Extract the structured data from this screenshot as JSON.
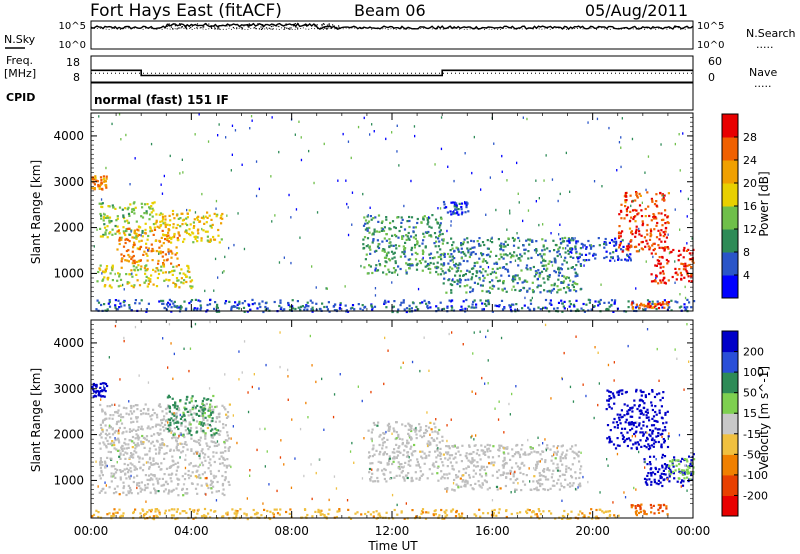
{
  "header": {
    "station": "Fort Hays East (fitACF)",
    "beam": "Beam 06",
    "date": "05/Aug/2011"
  },
  "panels": {
    "nsky_label": "N.Sky",
    "nsearch_label": "N.Search",
    "freq_label_1": "Freq.",
    "freq_label_2": "[MHz]",
    "nave_label": "Nave",
    "cpid_label": "CPID",
    "cpid_text": "normal (fast) 151 IF",
    "noise_ticks_left": [
      "10^5",
      "10^0"
    ],
    "noise_ticks_right": [
      "10^5",
      "10^0"
    ],
    "freq_ticks": [
      "18",
      "8"
    ],
    "nave_ticks": [
      "60",
      "0"
    ],
    "legend_dotted": "....."
  },
  "colors": {
    "power_scale": [
      "#0000ff",
      "#2a55c8",
      "#2e8b57",
      "#6fbf4a",
      "#e8d000",
      "#f0a000",
      "#f06000",
      "#e80000"
    ],
    "velocity_scale": [
      "#0000c8",
      "#2a4fd8",
      "#2e8b57",
      "#7ed050",
      "#c8c8c8",
      "#f0c040",
      "#f08000",
      "#e84000",
      "#e80000"
    ],
    "ground_scatter": "#bebebe"
  },
  "chart_data": [
    {
      "type": "heatmap",
      "title": "",
      "quantity": "Power",
      "ylabel": "Slant Range [km]",
      "xlabel": "",
      "x_ticks": [
        "00:00",
        "04:00",
        "08:00",
        "12:00",
        "16:00",
        "20:00",
        "00:00"
      ],
      "y_ticks": [
        "1000",
        "2000",
        "3000",
        "4000"
      ],
      "xlim_hours": [
        0,
        24
      ],
      "ylim_km": [
        180,
        4500
      ],
      "colorbar": {
        "label": "Power [dB]",
        "ticks": [
          "4",
          "8",
          "12",
          "16",
          "20",
          "24",
          "28"
        ],
        "range": [
          0,
          30
        ]
      },
      "echo_regions": [
        {
          "t_start": 0.0,
          "t_end": 0.6,
          "range_low": 2850,
          "range_high": 3150,
          "value": 22
        },
        {
          "t_start": 0.3,
          "t_end": 2.5,
          "range_low": 1800,
          "range_high": 2600,
          "value": 14
        },
        {
          "t_start": 1.0,
          "t_end": 3.5,
          "range_low": 1200,
          "range_high": 2000,
          "value": 22
        },
        {
          "t_start": 2.5,
          "t_end": 5.2,
          "range_low": 1700,
          "range_high": 2400,
          "value": 18
        },
        {
          "t_start": 0.2,
          "t_end": 4.0,
          "range_low": 700,
          "range_high": 1200,
          "value": 16
        },
        {
          "t_start": 10.8,
          "t_end": 14.0,
          "range_low": 1000,
          "range_high": 2300,
          "value": 10
        },
        {
          "t_start": 14.0,
          "t_end": 19.5,
          "range_low": 600,
          "range_high": 1800,
          "value": 9
        },
        {
          "t_start": 14.0,
          "t_end": 15.0,
          "range_low": 2300,
          "range_high": 2600,
          "value": 4
        },
        {
          "t_start": 19.0,
          "t_end": 21.5,
          "range_low": 1300,
          "range_high": 1800,
          "value": 5
        },
        {
          "t_start": 21.0,
          "t_end": 23.0,
          "range_low": 1500,
          "range_high": 2800,
          "value": 26
        },
        {
          "t_start": 22.3,
          "t_end": 24.0,
          "range_low": 800,
          "range_high": 1600,
          "value": 28
        },
        {
          "t_start": 0.0,
          "t_end": 24.0,
          "range_low": 180,
          "range_high": 450,
          "value": 6
        },
        {
          "t_start": 21.5,
          "t_end": 23.0,
          "range_low": 250,
          "range_high": 400,
          "value": 24
        }
      ]
    },
    {
      "type": "heatmap",
      "title": "",
      "quantity": "Velocity",
      "ylabel": "Slant Range [km]",
      "xlabel": "Time UT",
      "x_ticks": [
        "00:00",
        "04:00",
        "08:00",
        "12:00",
        "16:00",
        "20:00",
        "00:00"
      ],
      "y_ticks": [
        "1000",
        "2000",
        "3000",
        "4000"
      ],
      "xlim_hours": [
        0,
        24
      ],
      "ylim_km": [
        180,
        4500
      ],
      "colorbar": {
        "label": "Velocity [m s^-1]",
        "ticks": [
          "200",
          "100",
          "50",
          "15",
          "-15",
          "-50",
          "-100",
          "-200"
        ],
        "range": [
          -250,
          250
        ]
      },
      "echo_regions": [
        {
          "t_start": 0.0,
          "t_end": 0.6,
          "range_low": 2850,
          "range_high": 3150,
          "value": 220
        },
        {
          "t_start": 0.3,
          "t_end": 5.5,
          "range_low": 700,
          "range_high": 2700,
          "value": 0,
          "ground_scatter": true
        },
        {
          "t_start": 3.0,
          "t_end": 5.0,
          "range_low": 2000,
          "range_high": 2900,
          "value": 60
        },
        {
          "t_start": 11.0,
          "t_end": 14.0,
          "range_low": 1000,
          "range_high": 2300,
          "value": 0,
          "ground_scatter": true
        },
        {
          "t_start": 14.0,
          "t_end": 19.5,
          "range_low": 800,
          "range_high": 1800,
          "value": 0,
          "ground_scatter": true
        },
        {
          "t_start": 20.5,
          "t_end": 23.0,
          "range_low": 1700,
          "range_high": 3000,
          "value": 230
        },
        {
          "t_start": 22.0,
          "t_end": 24.0,
          "range_low": 900,
          "range_high": 1600,
          "value": 220
        },
        {
          "t_start": 23.0,
          "t_end": 24.0,
          "range_low": 1000,
          "range_high": 1500,
          "value": 30
        },
        {
          "t_start": 0.0,
          "t_end": 21.0,
          "range_low": 180,
          "range_high": 400,
          "value": -40
        },
        {
          "t_start": 21.5,
          "t_end": 23.0,
          "range_low": 250,
          "range_high": 500,
          "value": -100
        }
      ]
    }
  ],
  "noise_data": {
    "nsky_log10_mean": 4.2,
    "nsearch_log10_mean": 4.0
  },
  "freq_data": {
    "unit": "MHz",
    "segments": [
      {
        "t_start": 0.0,
        "t_end": 2.0,
        "freq": 12.5
      },
      {
        "t_start": 2.0,
        "t_end": 14.0,
        "freq": 10.5
      },
      {
        "t_start": 14.0,
        "t_end": 24.0,
        "freq": 12.5
      }
    ],
    "nave": 20
  }
}
